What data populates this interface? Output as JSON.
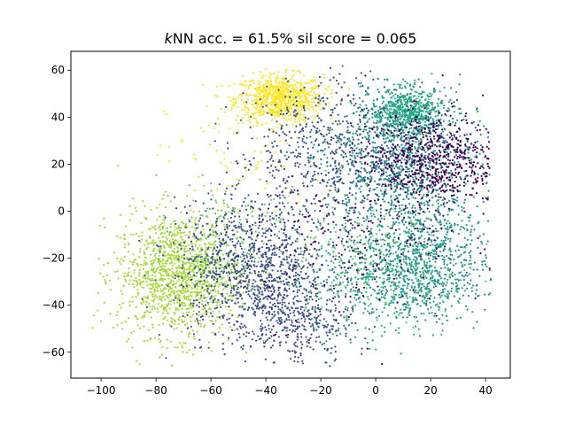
{
  "chart_data": {
    "type": "scatter",
    "title_prefix": "k",
    "title_rest": "NN acc. = 61.5% sil score = 0.065",
    "xlabel": "",
    "ylabel": "",
    "xlim": [
      -111,
      49
    ],
    "ylim": [
      -71,
      68
    ],
    "x_ticks": [
      -100,
      -80,
      -60,
      -40,
      -20,
      0,
      20,
      40
    ],
    "y_ticks": [
      -60,
      -40,
      -20,
      0,
      20,
      40,
      60
    ],
    "x_tick_labels": [
      "−100",
      "−80",
      "−60",
      "−40",
      "−20",
      "0",
      "20",
      "40"
    ],
    "y_tick_labels": [
      "−60",
      "−40",
      "−20",
      "0",
      "20",
      "40",
      "60"
    ],
    "grid": false,
    "legend": "none",
    "colors": [
      "#440154",
      "#3b528b",
      "#21918c",
      "#22a884",
      "#5ec962",
      "#a5db36",
      "#fde725"
    ],
    "clusters": [
      {
        "color_index": 6,
        "center": [
          -35,
          48
        ],
        "spread": [
          8,
          5
        ],
        "count": 800
      },
      {
        "color_index": 6,
        "center": [
          -48,
          22
        ],
        "spread": [
          14,
          14
        ],
        "count": 90
      },
      {
        "color_index": 5,
        "center": [
          -72,
          -27
        ],
        "spread": [
          11,
          13
        ],
        "count": 1300
      },
      {
        "color_index": 4,
        "center": [
          -55,
          -10
        ],
        "spread": [
          12,
          12
        ],
        "count": 150
      },
      {
        "color_index": 1,
        "center": [
          -45,
          -25
        ],
        "spread": [
          14,
          14
        ],
        "count": 1000
      },
      {
        "color_index": 1,
        "center": [
          -28,
          -48
        ],
        "spread": [
          10,
          9
        ],
        "count": 350
      },
      {
        "color_index": 1,
        "center": [
          -15,
          25
        ],
        "spread": [
          18,
          16
        ],
        "count": 700
      },
      {
        "color_index": 3,
        "center": [
          12,
          42
        ],
        "spread": [
          7,
          5
        ],
        "count": 600
      },
      {
        "color_index": 2,
        "center": [
          10,
          20
        ],
        "spread": [
          14,
          14
        ],
        "count": 900
      },
      {
        "color_index": 2,
        "center": [
          18,
          -20
        ],
        "spread": [
          12,
          12
        ],
        "count": 700
      },
      {
        "color_index": 3,
        "center": [
          5,
          -30
        ],
        "spread": [
          14,
          12
        ],
        "count": 500
      },
      {
        "color_index": 0,
        "center": [
          20,
          22
        ],
        "spread": [
          12,
          10
        ],
        "count": 700
      },
      {
        "color_index": 0,
        "center": [
          -10,
          -15
        ],
        "spread": [
          20,
          16
        ],
        "count": 250
      },
      {
        "color_index": 4,
        "center": [
          -5,
          -20
        ],
        "spread": [
          20,
          15
        ],
        "count": 200
      }
    ]
  }
}
